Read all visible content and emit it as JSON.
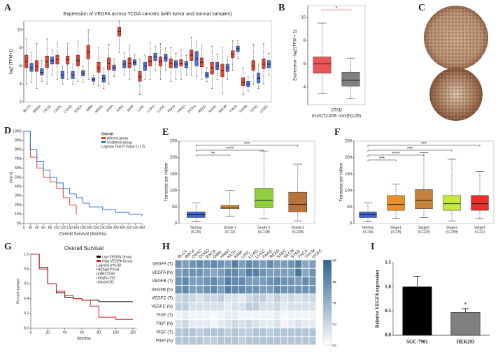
{
  "chart_data": [
    {
      "type": "boxplot",
      "label": "A",
      "title": "Expression of VEGFA across TCGA cancers (with tumor and normal samples)",
      "ylabel": "log2 (TPM+1)",
      "categories": [
        "BLCA",
        "BRCA",
        "CESC",
        "CHOL",
        "COAD",
        "ESCA",
        "GBM",
        "HNSC",
        "KICH",
        "KIRC",
        "KIRP",
        "LIHC",
        "LUAD",
        "LUSC",
        "PAAD",
        "PRAD",
        "PCPG",
        "READ",
        "SARC",
        "SKCM",
        "THCA",
        "THYM",
        "STAD",
        "UCEC"
      ],
      "ylim": [
        2,
        11
      ],
      "yticks": [
        2,
        4,
        6,
        8,
        10
      ],
      "series": [
        {
          "color": "#e8412f",
          "values": [
            [
              4,
              5.8,
              6.5,
              7.2,
              9
            ],
            [
              3.5,
              5.4,
              6,
              6.6,
              8.5
            ],
            [
              4,
              5.8,
              6.5,
              7.1,
              9
            ],
            [
              4.5,
              6.2,
              6.7,
              7.2,
              8.6
            ],
            [
              4.5,
              6.2,
              6.7,
              7.1,
              8.5
            ],
            [
              4.3,
              6,
              6.6,
              7.2,
              8.8
            ],
            [
              4.5,
              6.8,
              7.5,
              8.3,
              10
            ],
            [
              3.8,
              5.3,
              5.8,
              6.4,
              8
            ],
            [
              4,
              5.6,
              6.3,
              6.9,
              8.4
            ],
            [
              7.5,
              9.3,
              9.8,
              10.3,
              11
            ],
            [
              4.5,
              5.8,
              6.3,
              6.9,
              8.3
            ],
            [
              2.8,
              4.3,
              4.8,
              5.4,
              6.8
            ],
            [
              4.5,
              6,
              6.5,
              7.1,
              8.6
            ],
            [
              4.5,
              6,
              6.5,
              7,
              8.5
            ],
            [
              4.3,
              5.8,
              6.3,
              6.8,
              8.1
            ],
            [
              4.5,
              6,
              6.3,
              6.7,
              7.8
            ],
            [
              5,
              6.6,
              7.2,
              7.8,
              9.2
            ],
            [
              4.5,
              5.9,
              6.4,
              6.9,
              8.3
            ],
            [
              3.5,
              5.1,
              5.8,
              6.4,
              8.2
            ],
            [
              3,
              4.8,
              5.5,
              6.2,
              8
            ],
            [
              5.5,
              6.9,
              7.3,
              7.7,
              8.8
            ],
            [
              2.8,
              3.8,
              4.2,
              4.7,
              5.8
            ],
            [
              4,
              5.5,
              6,
              6.6,
              8.4
            ],
            [
              4,
              5.7,
              6.2,
              6.8,
              8.5
            ]
          ]
        },
        {
          "color": "#4a6fd6",
          "values": [
            [
              4.2,
              5.4,
              5.8,
              6.3,
              7.5
            ],
            [
              4.3,
              5,
              5.3,
              5.7,
              6.6
            ],
            [
              5,
              6.2,
              6.6,
              7,
              7.8
            ],
            [
              4,
              4.6,
              5,
              5.4,
              6
            ],
            [
              4,
              4.6,
              5,
              5.4,
              6.2
            ],
            [
              4.2,
              4.9,
              5.2,
              5.5,
              6
            ],
            [
              4,
              4.3,
              4.5,
              4.7,
              5
            ],
            [
              3.5,
              4.2,
              4.6,
              5,
              5.8
            ],
            [
              4.8,
              5.5,
              5.8,
              6.1,
              6.8
            ],
            [
              5,
              5.8,
              6.2,
              6.6,
              7.5
            ],
            [
              5.5,
              6.1,
              6.4,
              6.7,
              7.3
            ],
            [
              4.5,
              5.5,
              6,
              6.4,
              7.2
            ],
            [
              5.5,
              6.6,
              7,
              7.4,
              8.2
            ],
            [
              5.5,
              6.5,
              6.9,
              7.3,
              8
            ],
            [
              4.5,
              5.8,
              6.2,
              6.6,
              7.4
            ],
            [
              5,
              5.8,
              6.2,
              6.5,
              7.2
            ],
            [
              4.8,
              6,
              6.8,
              7.6,
              8.8
            ],
            [
              4.3,
              4.7,
              5,
              5.3,
              5.8
            ],
            [
              4.5,
              5.6,
              6,
              6.4,
              7.3
            ],
            [
              4.5,
              5.4,
              5.8,
              6.2,
              7
            ],
            [
              6.8,
              7.6,
              7.9,
              8.2,
              8.8
            ],
            [
              3.2,
              3.7,
              4,
              4.3,
              4.8
            ],
            [
              3.5,
              4.1,
              4.6,
              5.2,
              6.2
            ],
            [
              5,
              5.8,
              6.2,
              6.6,
              7.4
            ]
          ]
        }
      ]
    },
    {
      "type": "boxplot",
      "label": "B",
      "ylabel": "Expression - log2(TPM + 1)",
      "xlabel": "STAD",
      "subtitle": "(num(T)=408; num(N)=36)",
      "ylim": [
        2.5,
        11
      ],
      "yticks": [
        4,
        6,
        8,
        10
      ],
      "series": [
        {
          "color": "#e8555a",
          "values": [
            [
              3.5,
              5.2,
              6,
              6.6,
              9.5
            ]
          ]
        },
        {
          "color": "#808080",
          "values": [
            [
              3,
              4.1,
              4.6,
              5.3,
              6.5
            ]
          ]
        }
      ],
      "significance": [
        {
          "from": 0,
          "to": 1,
          "label": "*"
        }
      ],
      "significance_color": "#e8412f"
    },
    {
      "type": "image",
      "label": "C"
    },
    {
      "type": "survival",
      "label": "D",
      "legend_title": "Overall",
      "legend": "top-right",
      "annotations": [
        "Logrank Test P-Value: 0.175"
      ],
      "xlabel": "Overall Survival (Months)",
      "ylabel": "Overall",
      "xlim": [
        0,
        360
      ],
      "xticks": [
        0,
        20,
        40,
        60,
        80,
        100,
        120,
        140,
        160,
        180,
        200,
        220,
        240,
        260,
        280,
        300,
        320,
        340,
        360
      ],
      "ylim": [
        0,
        100
      ],
      "yticks": [
        {
          "value": 0,
          "label": "0%"
        },
        {
          "value": 10,
          "label": "10%"
        },
        {
          "value": 20,
          "label": "20%"
        },
        {
          "value": 30,
          "label": "30%"
        },
        {
          "value": 40,
          "label": "40%"
        },
        {
          "value": 50,
          "label": "50%"
        },
        {
          "value": 60,
          "label": "60%"
        },
        {
          "value": 70,
          "label": "70%"
        },
        {
          "value": 80,
          "label": "80%"
        },
        {
          "value": 90,
          "label": "90%"
        },
        {
          "value": 100,
          "label": "100%"
        }
      ],
      "series": [
        {
          "name": "Altered group",
          "color": "#e0442c",
          "x": [
            0,
            20,
            40,
            60,
            80,
            100,
            120,
            140,
            160
          ],
          "values": [
            100,
            72,
            60,
            50,
            45,
            38,
            28,
            20,
            10
          ]
        },
        {
          "name": "Unaltered group",
          "color": "#2c6fd6",
          "x": [
            0,
            20,
            40,
            60,
            80,
            100,
            120,
            140,
            160,
            180,
            200,
            240,
            280,
            320,
            360
          ],
          "values": [
            100,
            80,
            67,
            58,
            50,
            44,
            38,
            32,
            28,
            22,
            18,
            15,
            12,
            10,
            8
          ]
        }
      ]
    },
    {
      "type": "boxplot",
      "label": "E",
      "ylabel": "Transcript per million",
      "categories": [
        "Normal",
        "Grade 1",
        "Grade 2",
        "Grade 3"
      ],
      "category_counts": [
        "(n=34)",
        "(n=12)",
        "(n=148)",
        "(n=246)"
      ],
      "ylim": [
        0,
        250
      ],
      "yticks": [
        0,
        50,
        100,
        150,
        200,
        250
      ],
      "series": [
        {
          "colors": [
            "#3f63d8",
            "#e8912a",
            "#8fcf3c",
            "#b8743a"
          ],
          "values": [
            [
              5,
              18,
              27,
              35,
              62
            ],
            [
              22,
              45,
              50,
              55,
              100
            ],
            [
              15,
              48,
              70,
              107,
              220
            ],
            [
              8,
              35,
              58,
              95,
              180
            ]
          ]
        }
      ],
      "significance": [
        {
          "from": 0,
          "to": 1,
          "label": "**"
        },
        {
          "from": 0,
          "to": 2,
          "label": "****"
        },
        {
          "from": 0,
          "to": 3,
          "label": "***"
        }
      ]
    },
    {
      "type": "boxplot",
      "label": "F",
      "ylabel": "Transcript per million",
      "categories": [
        "Normal",
        "Stage1",
        "Stage2",
        "Stage3",
        "Stage4"
      ],
      "category_counts": [
        "(n=34)",
        "(n=18)",
        "(n=123)",
        "(n=169)",
        "(n=41)"
      ],
      "ylim": [
        0,
        250
      ],
      "yticks": [
        0,
        50,
        100,
        150,
        200,
        250
      ],
      "series": [
        {
          "colors": [
            "#3f63d8",
            "#e8912a",
            "#c8813a",
            "#c8e83a",
            "#e8302a"
          ],
          "values": [
            [
              5,
              18,
              27,
              35,
              62
            ],
            [
              15,
              40,
              58,
              85,
              120
            ],
            [
              18,
              45,
              70,
              103,
              215
            ],
            [
              8,
              40,
              60,
              85,
              195
            ],
            [
              15,
              40,
              60,
              85,
              158
            ]
          ]
        }
      ],
      "significance": [
        {
          "from": 0,
          "to": 1,
          "label": "***"
        },
        {
          "from": 0,
          "to": 2,
          "label": "****"
        },
        {
          "from": 0,
          "to": 3,
          "label": "***"
        },
        {
          "from": 0,
          "to": 4,
          "label": "***"
        }
      ]
    },
    {
      "type": "survival",
      "label": "G",
      "title": "Overall Survival",
      "legend": "top-right",
      "annotations": [
        "Logrank p=0.68",
        "HR(high)=0.94",
        "p(HR)=0.68",
        "n(high)=192",
        "n(low)=192"
      ],
      "xlabel": "Months",
      "ylabel": "Percent survival",
      "xlim": [
        0,
        125
      ],
      "xticks": [
        0,
        20,
        40,
        60,
        80,
        100,
        120
      ],
      "ylim": [
        0,
        1
      ],
      "yticks": [
        {
          "value": 0,
          "label": "0.0"
        },
        0.2,
        0.4,
        0.6,
        0.8,
        {
          "value": 1,
          "label": "1.0"
        }
      ],
      "series": [
        {
          "name": "Low VEGFA Group",
          "color": "#000000",
          "x": [
            0,
            10,
            20,
            30,
            40,
            50,
            60,
            70,
            80,
            90,
            100,
            110,
            120
          ],
          "values": [
            1,
            0.82,
            0.6,
            0.48,
            0.42,
            0.4,
            0.38,
            0.38,
            0.36,
            0.36,
            0.36,
            0.36,
            0.36
          ]
        },
        {
          "name": "High VEGFA Group",
          "color": "#e02020",
          "x": [
            0,
            10,
            20,
            30,
            40,
            50,
            60,
            70,
            80,
            100,
            120
          ],
          "values": [
            1,
            0.8,
            0.6,
            0.5,
            0.44,
            0.4,
            0.38,
            0.3,
            0.15,
            0.12,
            0.12
          ]
        }
      ]
    },
    {
      "type": "heatmap",
      "label": "H",
      "columns": [
        "BLCA",
        "BRCA",
        "CESC",
        "COAD",
        "ESCA",
        "GBM",
        "HNSC",
        "KICH",
        "KIRP",
        "LIHC",
        "LUAD",
        "LUSC",
        "PAAD",
        "READ",
        "SARC",
        "SKCM",
        "STAD",
        "THCA",
        "THYM",
        "UCEC"
      ],
      "rows": [
        "VEGFA (T)",
        "VEGFA (N)",
        "VEGFB (T)",
        "VEGFB (N)",
        "VEGFC (T)",
        "VEGFC (N)",
        "FIGF (T)",
        "FIGF (N)",
        "PIGF (T)",
        "PIGF (N)"
      ],
      "values": [
        [
          5.5,
          5,
          5.5,
          6,
          5.5,
          6,
          5.5,
          5,
          6.5,
          5,
          6,
          5.5,
          5,
          6,
          5,
          5,
          5.5,
          6.5,
          4.5,
          5
        ],
        [
          5,
          5.5,
          5.5,
          5.5,
          5,
          4.5,
          5,
          6,
          6,
          5,
          6.5,
          6.5,
          5.5,
          5,
          5,
          5,
          5,
          7,
          4.5,
          5.5
        ],
        [
          5.5,
          6,
          5,
          5,
          5.5,
          6,
          5,
          6.5,
          6,
          6,
          5,
          5,
          5,
          5.5,
          6,
          5.5,
          5.5,
          5,
          6,
          5.5
        ],
        [
          5.5,
          6,
          5,
          5,
          5.5,
          6,
          5,
          6.5,
          6,
          6,
          5.5,
          5.5,
          5,
          5,
          6,
          5.5,
          5.5,
          5.5,
          5.5,
          5.5
        ],
        [
          2,
          2.5,
          2,
          1.5,
          2,
          2,
          2.5,
          1.5,
          1.5,
          1,
          2,
          2.5,
          2.5,
          1.5,
          2.5,
          1.5,
          2,
          1.5,
          2,
          2
        ],
        [
          2.5,
          2.5,
          1.5,
          1.5,
          1.5,
          1.5,
          1.5,
          1,
          1.5,
          1.5,
          2.5,
          2.5,
          1.5,
          1.5,
          2,
          1,
          1.5,
          1.5,
          1.5,
          1.5
        ],
        [
          0.5,
          1,
          0.5,
          0.5,
          0.5,
          0.3,
          0.5,
          1,
          1,
          0.5,
          0.5,
          0.5,
          0.5,
          0.5,
          1,
          0.3,
          0.5,
          0.5,
          0.5,
          0.5
        ],
        [
          1.5,
          2,
          1,
          1,
          1,
          0.5,
          1,
          1.5,
          2,
          1.5,
          2,
          1.5,
          1,
          1,
          1.5,
          0.5,
          1,
          1.5,
          1,
          1
        ],
        [
          3,
          3,
          3,
          2.5,
          3,
          3,
          3,
          2.5,
          3,
          2.5,
          2.5,
          3,
          3,
          2.5,
          3,
          3,
          3,
          3,
          3,
          3
        ],
        [
          3,
          3,
          3,
          3,
          2.5,
          2.5,
          3,
          3,
          3,
          2.5,
          3,
          3,
          3,
          3,
          3,
          3,
          3,
          3,
          3,
          3
        ]
      ],
      "clim": [
        0,
        8
      ],
      "cticks": [
        0,
        2,
        4,
        6,
        8
      ],
      "colors": [
        "#ffffff",
        "#2e6390"
      ]
    },
    {
      "type": "bar",
      "label": "I",
      "categories": [
        "SGC-7901",
        "HEK293"
      ],
      "values": [
        1.0,
        0.47
      ],
      "errors": [
        0.22,
        0.08
      ],
      "colors": [
        "#000000",
        "#808080"
      ],
      "significance_labels": [
        null,
        "*"
      ],
      "ylabel": "Relative VEGFA expression",
      "ylim": [
        0,
        1.5
      ],
      "yticks": [
        {
          "value": 0,
          "label": "0.0"
        },
        0.5,
        {
          "value": 1,
          "label": "1.0"
        },
        1.5
      ]
    }
  ]
}
